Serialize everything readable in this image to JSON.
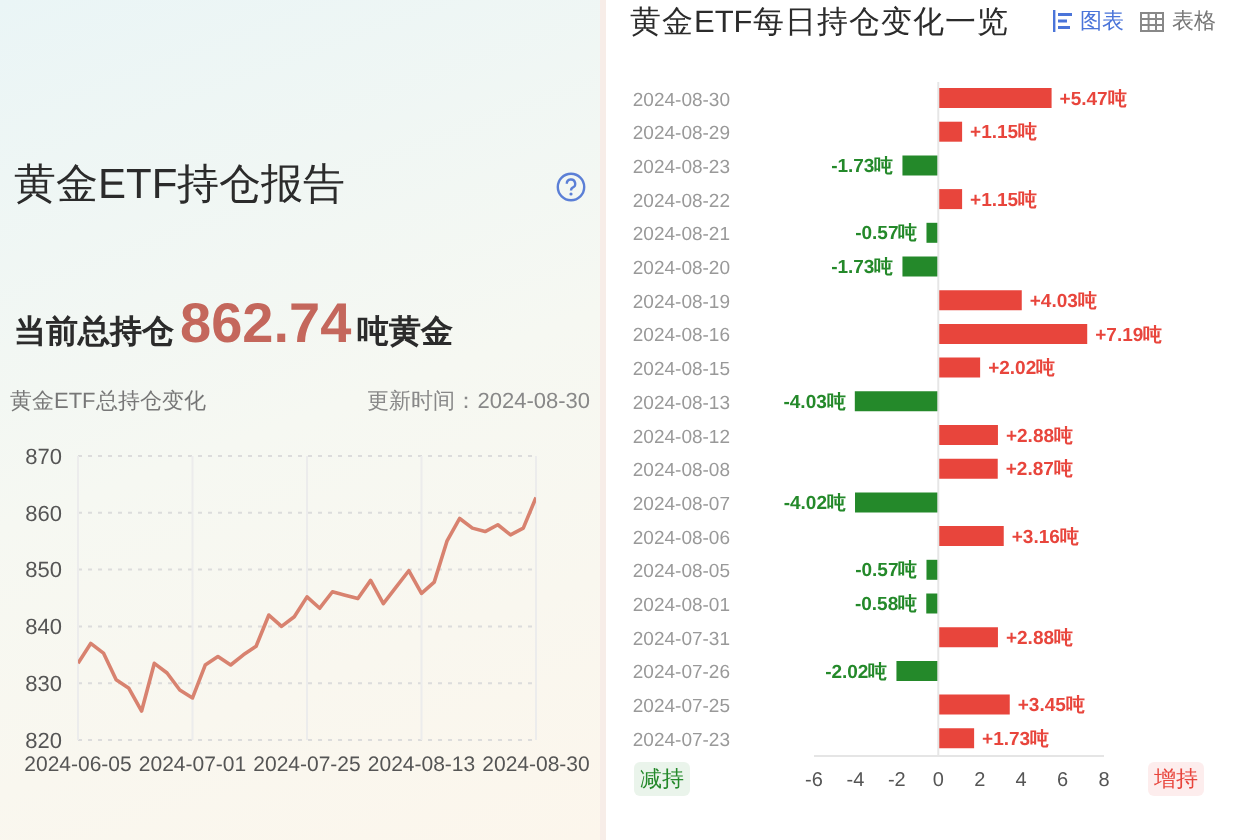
{
  "chart_data": [
    {
      "type": "other",
      "title": "黄金ETF持仓报告",
      "annotations": [
        "当前总持仓",
        "862.74",
        "吨黄金"
      ]
    },
    {
      "type": "line",
      "title": "黄金ETF总持仓变化",
      "annotations": [
        "更新时间：2024-08-30"
      ],
      "categories": [
        "2024-06-05",
        null,
        null,
        null,
        null,
        null,
        null,
        null,
        null,
        "2024-07-01",
        null,
        null,
        null,
        null,
        null,
        null,
        null,
        null,
        "2024-07-25",
        null,
        null,
        null,
        null,
        null,
        null,
        null,
        null,
        "2024-08-13",
        null,
        null,
        null,
        null,
        null,
        null,
        null,
        null,
        "2024-08-30"
      ],
      "series": [
        {
          "color": "#d8826f",
          "values": [
            833.5,
            837.0,
            835.3,
            830.6,
            829.1,
            825.1,
            833.5,
            831.8,
            828.8,
            827.4,
            833.2,
            834.7,
            833.2,
            835.0,
            836.5,
            842.0,
            840.0,
            841.7,
            845.2,
            843.2,
            846.1,
            845.5,
            844.9,
            848.1,
            844.0,
            846.9,
            849.8,
            845.8,
            847.8,
            855.0,
            859.0,
            857.3,
            856.7,
            857.9,
            856.1,
            857.3,
            862.7
          ]
        }
      ],
      "ylim": [
        820,
        870
      ],
      "yticks": [
        820,
        830,
        840,
        850,
        860,
        870
      ],
      "grid": true,
      "marker": "none"
    },
    {
      "type": "bar",
      "orientation": "horizontal",
      "title": "黄金ETF每日持仓变化一览",
      "annotations": [
        "图表",
        "表格",
        "减持",
        "增持"
      ],
      "categories": [
        "2024-08-30",
        "2024-08-29",
        "2024-08-23",
        "2024-08-22",
        "2024-08-21",
        "2024-08-20",
        "2024-08-19",
        "2024-08-16",
        "2024-08-15",
        "2024-08-13",
        "2024-08-12",
        "2024-08-08",
        "2024-08-07",
        "2024-08-06",
        "2024-08-05",
        "2024-08-01",
        "2024-07-31",
        "2024-07-26",
        "2024-07-25",
        "2024-07-23"
      ],
      "values": [
        5.47,
        1.15,
        -1.73,
        1.15,
        -0.57,
        -1.73,
        4.03,
        7.19,
        2.02,
        -4.03,
        2.88,
        2.87,
        -4.02,
        3.16,
        -0.57,
        -0.58,
        2.88,
        -2.02,
        3.45,
        1.73
      ],
      "colors": [
        "#e8453c",
        "#e8453c",
        "#24892a",
        "#e8453c",
        "#24892a",
        "#24892a",
        "#e8453c",
        "#e8453c",
        "#e8453c",
        "#24892a",
        "#e8453c",
        "#e8453c",
        "#24892a",
        "#e8453c",
        "#24892a",
        "#24892a",
        "#e8453c",
        "#24892a",
        "#e8453c",
        "#e8453c"
      ],
      "value_labels": [
        "+5.47吨",
        "+1.15吨",
        "-1.73吨",
        "+1.15吨",
        "-0.57吨",
        "-1.73吨",
        "+4.03吨",
        "+7.19吨",
        "+2.02吨",
        "-4.03吨",
        "+2.88吨",
        "+2.87吨",
        "-4.02吨",
        "+3.16吨",
        "-0.57吨",
        "-0.58吨",
        "+2.88吨",
        "-2.02吨",
        "+3.45吨",
        "+1.73吨"
      ],
      "xlim": [
        -6,
        8
      ],
      "xticks": [
        -6,
        -4,
        -2,
        0,
        2,
        4,
        6,
        8
      ],
      "ref_lines": [
        {
          "axis": "x",
          "value": 0,
          "color": "#e6e6e6"
        }
      ]
    }
  ]
}
